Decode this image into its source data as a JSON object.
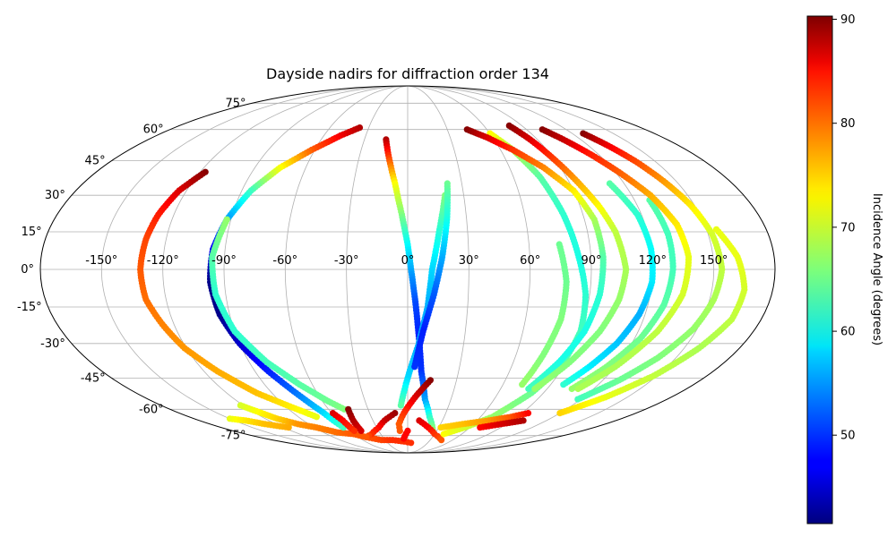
{
  "chart_data": {
    "type": "scatter",
    "projection": "mollweide",
    "title": "Dayside nadirs for diffraction order 134",
    "xlabel": "",
    "ylabel": "",
    "grid": true,
    "x_ticks": [
      "-150°",
      "-120°",
      "-90°",
      "-60°",
      "-30°",
      "0°",
      "30°",
      "60°",
      "90°",
      "120°",
      "150°"
    ],
    "x_tick_values": [
      -150,
      -120,
      -90,
      -60,
      -30,
      0,
      30,
      60,
      90,
      120,
      150
    ],
    "y_ticks": [
      "-75°",
      "-60°",
      "-45°",
      "-30°",
      "-15°",
      "0°",
      "15°",
      "30°",
      "45°",
      "60°",
      "75°"
    ],
    "y_tick_values": [
      -75,
      -60,
      -45,
      -30,
      -15,
      0,
      15,
      30,
      45,
      60,
      75
    ],
    "xlim": [
      -180,
      180
    ],
    "ylim": [
      -90,
      90
    ],
    "colorbar": {
      "label": "Incidence Angle (degrees)",
      "colormap": "jet",
      "range": [
        41.5,
        90.3
      ],
      "ticks": [
        "50",
        "60",
        "70",
        "80",
        "90"
      ],
      "tick_values": [
        50,
        60,
        70,
        80,
        90
      ]
    },
    "series": [
      {
        "points": [
          [
            -117,
            40,
            90
          ],
          [
            -124,
            32,
            86
          ],
          [
            -128,
            22,
            83
          ],
          [
            -130,
            12,
            81
          ],
          [
            -131,
            0,
            80
          ],
          [
            -130,
            -12,
            79
          ],
          [
            -126,
            -22,
            78
          ],
          [
            -121,
            -32,
            77
          ],
          [
            -112,
            -42,
            76
          ],
          [
            -100,
            -52,
            75
          ],
          [
            -88,
            -58,
            73
          ],
          [
            -75,
            -64,
            71
          ]
        ]
      },
      {
        "points": [
          [
            -122,
            -58,
            70
          ],
          [
            -110,
            -65,
            74
          ],
          [
            -100,
            -68,
            77
          ],
          [
            -88,
            -70,
            78
          ],
          [
            -75,
            -73,
            79
          ],
          [
            -60,
            -74,
            80
          ],
          [
            -50,
            -76,
            80
          ],
          [
            -35,
            -78,
            81
          ],
          [
            -20,
            -78,
            82
          ],
          [
            -5,
            -79,
            82
          ],
          [
            5,
            -80,
            82
          ]
        ]
      },
      {
        "points": [
          [
            -37,
            61,
            88
          ],
          [
            -48,
            57,
            85
          ],
          [
            -62,
            50,
            80
          ],
          [
            -75,
            42,
            72
          ],
          [
            -85,
            32,
            63
          ],
          [
            -92,
            20,
            55
          ],
          [
            -96,
            8,
            47
          ],
          [
            -97,
            -5,
            42
          ],
          [
            -95,
            -18,
            42
          ],
          [
            -90,
            -30,
            45
          ],
          [
            -82,
            -42,
            49
          ],
          [
            -74,
            -52,
            53
          ],
          [
            -66,
            -62,
            58
          ],
          [
            -62,
            -70,
            63
          ]
        ]
      },
      {
        "points": [
          [
            -92,
            20,
            67
          ],
          [
            -96,
            5,
            64
          ],
          [
            -95,
            -10,
            62
          ],
          [
            -90,
            -25,
            62
          ],
          [
            -80,
            -38,
            63
          ],
          [
            -68,
            -48,
            64
          ],
          [
            -56,
            -56,
            65
          ],
          [
            -48,
            -60,
            66
          ]
        ]
      },
      {
        "points": [
          [
            -45,
            -60,
            90
          ],
          [
            -47,
            -66,
            88
          ],
          [
            -48,
            -72,
            86
          ]
        ]
      },
      {
        "points": [
          [
            -59,
            -62,
            86
          ],
          [
            -56,
            -66,
            84
          ],
          [
            -55,
            -72,
            82
          ]
        ]
      },
      {
        "points": [
          [
            -15,
            55,
            88
          ],
          [
            -11,
            45,
            80
          ],
          [
            -7,
            35,
            72
          ],
          [
            -3,
            22,
            66
          ],
          [
            0,
            10,
            60
          ],
          [
            2,
            -2,
            55
          ],
          [
            4,
            -14,
            51
          ],
          [
            6,
            -28,
            49
          ],
          [
            8,
            -42,
            50
          ],
          [
            12,
            -55,
            55
          ],
          [
            18,
            -64,
            62
          ],
          [
            26,
            -72,
            67
          ]
        ]
      },
      {
        "points": [
          [
            20,
            30,
            66
          ],
          [
            16,
            16,
            62
          ],
          [
            12,
            0,
            58
          ],
          [
            10,
            -15,
            56
          ],
          [
            6,
            -30,
            56
          ],
          [
            0,
            -45,
            58
          ],
          [
            -5,
            -58,
            64
          ]
        ]
      },
      {
        "points": [
          [
            22,
            35,
            65
          ],
          [
            20,
            20,
            61
          ],
          [
            17,
            5,
            56
          ],
          [
            13,
            -10,
            52
          ],
          [
            8,
            -25,
            49
          ],
          [
            4,
            -40,
            50
          ]
        ]
      },
      {
        "points": [
          [
            14,
            -46,
            90
          ],
          [
            5,
            -54,
            86
          ],
          [
            -3,
            -62,
            82
          ],
          [
            -8,
            -68,
            80
          ],
          [
            -8,
            -72,
            80
          ]
        ]
      },
      {
        "points": [
          [
            -10,
            -62,
            89
          ],
          [
            -20,
            -66,
            87
          ],
          [
            -28,
            -70,
            84
          ],
          [
            -40,
            -74,
            82
          ],
          [
            -50,
            -76,
            80
          ]
        ]
      },
      {
        "points": [
          [
            0,
            -72,
            84
          ],
          [
            -5,
            -77,
            84
          ]
        ]
      },
      {
        "points": [
          [
            10,
            -66,
            86
          ],
          [
            20,
            -70,
            84
          ],
          [
            30,
            -74,
            82
          ],
          [
            45,
            -78,
            80
          ]
        ]
      },
      {
        "points": [
          [
            40,
            -74,
            72
          ],
          [
            55,
            -70,
            70
          ],
          [
            70,
            -64,
            67
          ],
          [
            82,
            -52,
            65
          ],
          [
            88,
            -40,
            64
          ],
          [
            90,
            -25,
            63
          ],
          [
            88,
            -10,
            62
          ],
          [
            84,
            5,
            61
          ],
          [
            80,
            22,
            62
          ],
          [
            75,
            38,
            64
          ],
          [
            68,
            50,
            68
          ],
          [
            60,
            58,
            72
          ]
        ]
      },
      {
        "points": [
          [
            32,
            -70,
            74
          ],
          [
            50,
            -68,
            75
          ],
          [
            70,
            -66,
            77
          ],
          [
            85,
            -64,
            80
          ],
          [
            95,
            -62,
            84
          ]
        ]
      },
      {
        "points": [
          [
            70,
            -70,
            84
          ],
          [
            85,
            -68,
            86
          ],
          [
            100,
            -66,
            88
          ]
        ]
      },
      {
        "points": [
          [
            45,
            60,
            90
          ],
          [
            56,
            56,
            86
          ],
          [
            68,
            50,
            82
          ],
          [
            80,
            42,
            78
          ],
          [
            90,
            32,
            73
          ],
          [
            95,
            20,
            68
          ],
          [
            96,
            5,
            64
          ],
          [
            95,
            -10,
            62
          ],
          [
            92,
            -25,
            61
          ],
          [
            86,
            -38,
            61
          ],
          [
            78,
            -50,
            63
          ]
        ]
      },
      {
        "points": [
          [
            80,
            62,
            90
          ],
          [
            85,
            55,
            86
          ],
          [
            90,
            45,
            81
          ],
          [
            95,
            35,
            76
          ],
          [
            100,
            25,
            72
          ],
          [
            104,
            15,
            69
          ],
          [
            107,
            0,
            68
          ],
          [
            105,
            -12,
            67
          ],
          [
            100,
            -25,
            66
          ],
          [
            92,
            -38,
            66
          ],
          [
            82,
            -50,
            67
          ]
        ]
      },
      {
        "points": [
          [
            75,
            10,
            65
          ],
          [
            78,
            -5,
            65
          ],
          [
            78,
            -20,
            66
          ],
          [
            75,
            -35,
            66
          ],
          [
            72,
            -48,
            67
          ]
        ]
      },
      {
        "points": [
          [
            112,
            35,
            64
          ],
          [
            118,
            22,
            62
          ],
          [
            120,
            8,
            60
          ],
          [
            120,
            -5,
            59
          ],
          [
            117,
            -18,
            56
          ],
          [
            112,
            -30,
            57
          ],
          [
            105,
            -40,
            59
          ],
          [
            98,
            -48,
            62
          ]
        ]
      },
      {
        "points": [
          [
            128,
            58,
            90
          ],
          [
            133,
            52,
            85
          ],
          [
            138,
            45,
            81
          ],
          [
            143,
            36,
            77
          ],
          [
            148,
            26,
            73
          ],
          [
            152,
            14,
            70
          ],
          [
            154,
            0,
            69
          ],
          [
            152,
            -12,
            68
          ],
          [
            148,
            -24,
            67
          ],
          [
            140,
            -36,
            66
          ],
          [
            130,
            -46,
            65
          ],
          [
            118,
            -55,
            63
          ]
        ]
      },
      {
        "points": [
          [
            128,
            28,
            64
          ],
          [
            130,
            14,
            63
          ],
          [
            130,
            0,
            63
          ],
          [
            128,
            -14,
            64
          ],
          [
            123,
            -28,
            65
          ],
          [
            115,
            -40,
            66
          ],
          [
            106,
            -50,
            67
          ]
        ]
      },
      {
        "points": [
          [
            102,
            60,
            90
          ],
          [
            108,
            55,
            87
          ],
          [
            115,
            48,
            83
          ],
          [
            122,
            40,
            80
          ],
          [
            130,
            30,
            76
          ],
          [
            136,
            18,
            73
          ],
          [
            138,
            5,
            71
          ],
          [
            136,
            -10,
            70
          ],
          [
            130,
            -25,
            69
          ],
          [
            120,
            -40,
            68
          ],
          [
            110,
            -50,
            68
          ]
        ]
      },
      {
        "points": [
          [
            155,
            16,
            71
          ],
          [
            162,
            5,
            71
          ],
          [
            166,
            -8,
            70
          ],
          [
            165,
            -20,
            69
          ],
          [
            158,
            -32,
            68
          ],
          [
            148,
            -44,
            69
          ],
          [
            135,
            -54,
            71
          ],
          [
            120,
            -62,
            74
          ]
        ]
      },
      {
        "points": [
          [
            -150,
            -65,
            71
          ],
          [
            -140,
            -66,
            73
          ],
          [
            -130,
            -68,
            75
          ],
          [
            -115,
            -70,
            76
          ]
        ]
      }
    ]
  }
}
